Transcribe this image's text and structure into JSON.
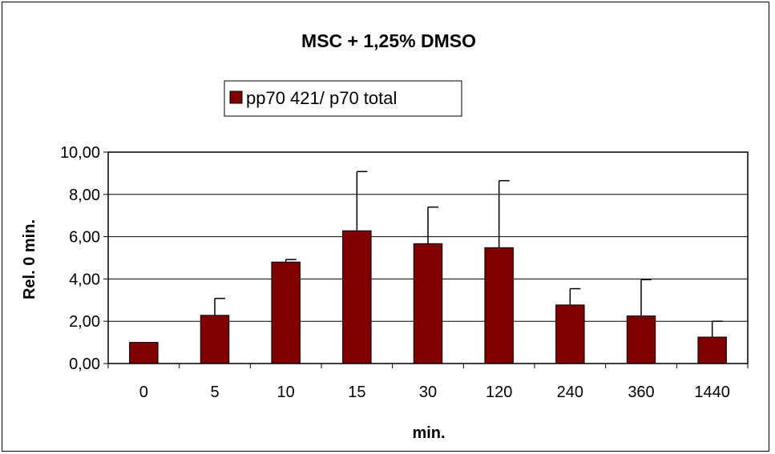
{
  "chart_data": {
    "type": "bar",
    "title": "MSC + 1,25% DMSO",
    "xlabel": "min.",
    "ylabel": "Rel. 0 min.",
    "categories": [
      "0",
      "5",
      "10",
      "15",
      "30",
      "120",
      "240",
      "360",
      "1440"
    ],
    "series": [
      {
        "name": "pp70 421/ p70 total",
        "values": [
          1.0,
          2.28,
          4.8,
          6.28,
          5.67,
          5.48,
          2.77,
          2.25,
          1.25
        ],
        "error_plus": [
          0.0,
          0.8,
          0.12,
          2.8,
          1.73,
          3.17,
          0.77,
          1.72,
          0.75
        ]
      }
    ],
    "ylim": [
      0,
      10
    ],
    "yticks": [
      "0,00",
      "2,00",
      "4,00",
      "6,00",
      "8,00",
      "10,00"
    ],
    "ytick_values": [
      0,
      2,
      4,
      6,
      8,
      10
    ],
    "grid": true,
    "legend_position": "top",
    "colors": {
      "bar": "#800000",
      "axis": "#000000",
      "grid": "#000000"
    }
  }
}
